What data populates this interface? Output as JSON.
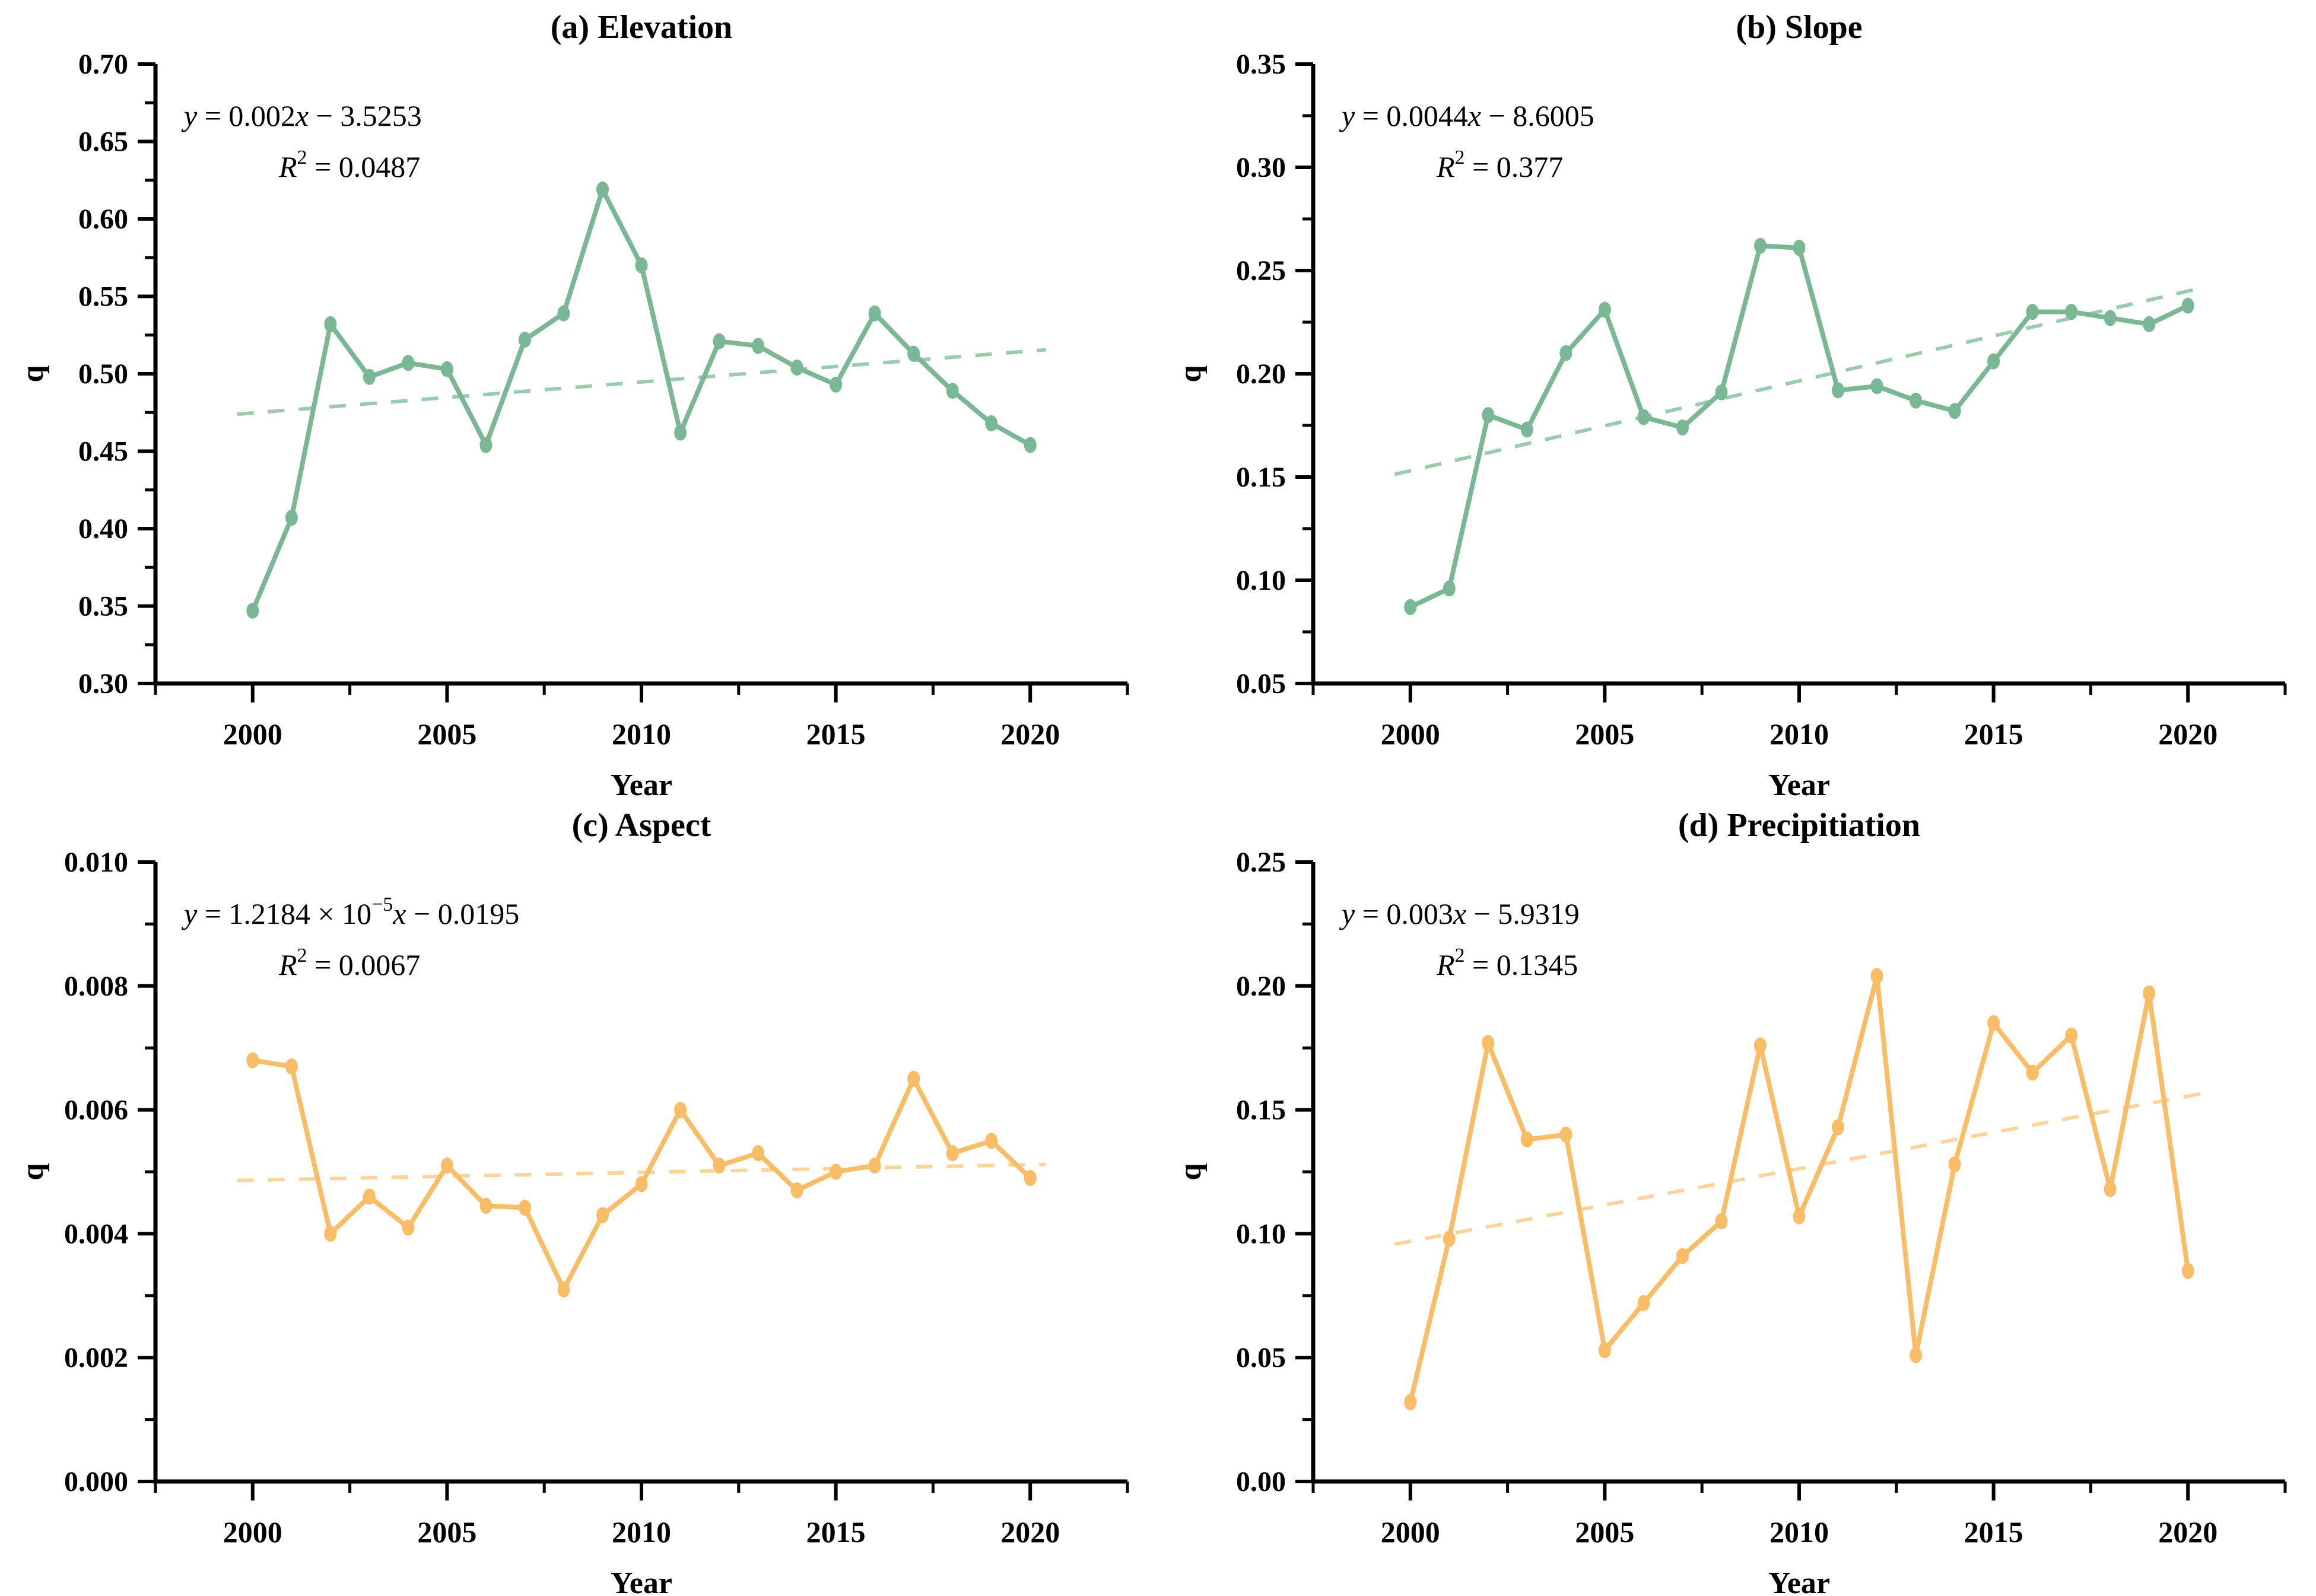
{
  "colors": {
    "green": "#7ab895",
    "green_trend": "#9acbad",
    "orange": "#fabd67",
    "orange_trend": "#fcd49a",
    "axis": "#000000"
  },
  "shared_axes": {
    "x_label": "Year",
    "y_label": "q",
    "x_range": [
      1997.5,
      2022.5
    ],
    "x_major_ticks": [
      2000,
      2005,
      2010,
      2015,
      2020
    ],
    "x_minor_ticks": [
      1997.5,
      2002.5,
      2007.5,
      2012.5,
      2017.5,
      2022.5
    ]
  },
  "chart_data": [
    {
      "id": "elevation",
      "type": "line",
      "title": "(a) Elevation",
      "equation_text": "y = 0.002x − 3.5253",
      "r2_text": "R² = 0.0487",
      "equation_segments": [
        {
          "t": "y",
          "i": true
        },
        {
          "t": " = 0.002"
        },
        {
          "t": "x",
          "i": true
        },
        {
          "t": " − 3.5253"
        }
      ],
      "r2_segments": [
        {
          "t": "R",
          "i": true
        },
        {
          "t": "2",
          "sup": true
        },
        {
          "t": " = 0.0487"
        }
      ],
      "color_key": "green",
      "trend_color_key": "green_trend",
      "ylim": [
        0.3,
        0.7
      ],
      "ytick_step": 0.05,
      "y_decimals": 2,
      "years": [
        2000,
        2001,
        2002,
        2003,
        2004,
        2005,
        2006,
        2007,
        2008,
        2009,
        2010,
        2011,
        2012,
        2013,
        2014,
        2015,
        2016,
        2017,
        2018,
        2019,
        2020
      ],
      "values": [
        0.347,
        0.407,
        0.532,
        0.498,
        0.507,
        0.503,
        0.454,
        0.522,
        0.539,
        0.619,
        0.57,
        0.462,
        0.521,
        0.518,
        0.504,
        0.493,
        0.539,
        0.513,
        0.489,
        0.468,
        0.454
      ],
      "trend": {
        "x": [
          1999.6,
          2020.4
        ],
        "y": [
          0.4739,
          0.5155
        ]
      }
    },
    {
      "id": "slope",
      "type": "line",
      "title": "(b) Slope",
      "equation_text": "y = 0.0044x − 8.6005",
      "r2_text": "R² = 0.377",
      "equation_segments": [
        {
          "t": "y",
          "i": true
        },
        {
          "t": " = 0.0044"
        },
        {
          "t": "x",
          "i": true
        },
        {
          "t": " − 8.6005"
        }
      ],
      "r2_segments": [
        {
          "t": "R",
          "i": true
        },
        {
          "t": "2",
          "sup": true
        },
        {
          "t": " = 0.377"
        }
      ],
      "color_key": "green",
      "trend_color_key": "green_trend",
      "ylim": [
        0.05,
        0.35
      ],
      "ytick_step": 0.05,
      "y_decimals": 2,
      "years": [
        2000,
        2001,
        2002,
        2003,
        2004,
        2005,
        2006,
        2007,
        2008,
        2009,
        2010,
        2011,
        2012,
        2013,
        2014,
        2015,
        2016,
        2017,
        2018,
        2019,
        2020
      ],
      "values": [
        0.087,
        0.096,
        0.18,
        0.173,
        0.21,
        0.231,
        0.179,
        0.174,
        0.191,
        0.262,
        0.261,
        0.192,
        0.194,
        0.187,
        0.182,
        0.206,
        0.23,
        0.23,
        0.227,
        0.224,
        0.233
      ],
      "trend": {
        "x": [
          1999.6,
          2020.4
        ],
        "y": [
          0.1513,
          0.2418
        ]
      }
    },
    {
      "id": "aspect",
      "type": "line",
      "title": "(c) Aspect",
      "equation_text": "y = 1.2184 × 10⁻⁵x − 0.0195",
      "r2_text": "R² = 0.0067",
      "equation_segments": [
        {
          "t": "y",
          "i": true
        },
        {
          "t": " = 1.2184 × 10"
        },
        {
          "t": "−5",
          "sup": true
        },
        {
          "t": "x",
          "i": true
        },
        {
          "t": " − 0.0195"
        }
      ],
      "r2_segments": [
        {
          "t": "R",
          "i": true
        },
        {
          "t": "2",
          "sup": true
        },
        {
          "t": " = 0.0067"
        }
      ],
      "color_key": "orange",
      "trend_color_key": "orange_trend",
      "ylim": [
        0.0,
        0.01
      ],
      "ytick_step": 0.002,
      "y_decimals": 3,
      "years": [
        2000,
        2001,
        2002,
        2003,
        2004,
        2005,
        2006,
        2007,
        2008,
        2009,
        2010,
        2011,
        2012,
        2013,
        2014,
        2015,
        2016,
        2017,
        2018,
        2019,
        2020
      ],
      "values": [
        0.0068,
        0.0067,
        0.004,
        0.0046,
        0.0041,
        0.0051,
        0.00445,
        0.00442,
        0.0031,
        0.0043,
        0.0048,
        0.006,
        0.0051,
        0.0053,
        0.0047,
        0.005,
        0.0051,
        0.0065,
        0.0053,
        0.0055,
        0.0049
      ],
      "trend": {
        "x": [
          1999.6,
          2020.4
        ],
        "y": [
          0.00486,
          0.00512
        ]
      }
    },
    {
      "id": "precipitiation",
      "type": "line",
      "title": "(d) Precipitiation",
      "equation_text": "y = 0.003x − 5.9319",
      "r2_text": "R² = 0.1345",
      "equation_segments": [
        {
          "t": "y",
          "i": true
        },
        {
          "t": " = 0.003"
        },
        {
          "t": "x",
          "i": true
        },
        {
          "t": " − 5.9319"
        }
      ],
      "r2_segments": [
        {
          "t": "R",
          "i": true
        },
        {
          "t": "2",
          "sup": true
        },
        {
          "t": " = 0.1345"
        }
      ],
      "color_key": "orange",
      "trend_color_key": "orange_trend",
      "ylim": [
        0.0,
        0.25
      ],
      "ytick_step": 0.05,
      "y_decimals": 2,
      "years": [
        2000,
        2001,
        2002,
        2003,
        2004,
        2005,
        2006,
        2007,
        2008,
        2009,
        2010,
        2011,
        2012,
        2013,
        2014,
        2015,
        2016,
        2017,
        2018,
        2019,
        2020
      ],
      "values": [
        0.032,
        0.098,
        0.177,
        0.138,
        0.14,
        0.053,
        0.072,
        0.091,
        0.105,
        0.176,
        0.107,
        0.143,
        0.204,
        0.051,
        0.128,
        0.185,
        0.165,
        0.18,
        0.118,
        0.197,
        0.085
      ],
      "trend": {
        "x": [
          1999.6,
          2020.4
        ],
        "y": [
          0.0958,
          0.1567
        ]
      }
    }
  ]
}
